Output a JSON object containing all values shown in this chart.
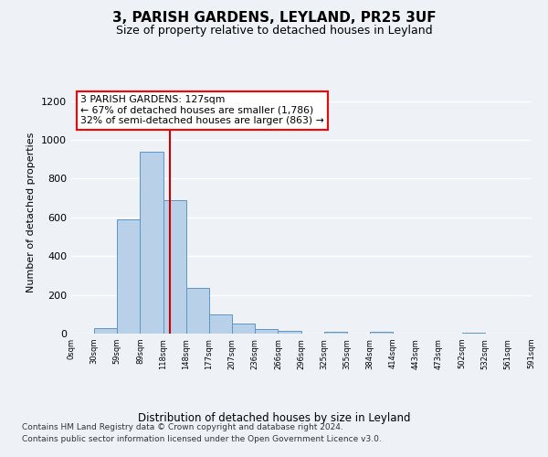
{
  "title": "3, PARISH GARDENS, LEYLAND, PR25 3UF",
  "subtitle": "Size of property relative to detached houses in Leyland",
  "xlabel": "Distribution of detached houses by size in Leyland",
  "ylabel": "Number of detached properties",
  "footer_line1": "Contains HM Land Registry data © Crown copyright and database right 2024.",
  "footer_line2": "Contains public sector information licensed under the Open Government Licence v3.0.",
  "annotation_line1": "3 PARISH GARDENS: 127sqm",
  "annotation_line2": "← 67% of detached houses are smaller (1,786)",
  "annotation_line3": "32% of semi-detached houses are larger (863) →",
  "bar_color": "#b8d0e8",
  "bar_edge_color": "#5a96c8",
  "redline_color": "#cc0000",
  "redline_x": 127,
  "bin_left_edges": [
    0,
    29.5,
    59,
    88.5,
    118,
    147.5,
    177,
    206.5,
    236,
    265.5,
    295,
    324.5,
    354,
    383.5,
    413,
    442.5,
    472,
    501.5,
    531,
    560.5
  ],
  "bin_width": 29.5,
  "bin_counts": [
    0,
    30,
    590,
    940,
    690,
    235,
    100,
    50,
    25,
    15,
    0,
    10,
    0,
    10,
    0,
    0,
    0,
    5,
    0,
    0
  ],
  "tick_labels": [
    "0sqm",
    "30sqm",
    "59sqm",
    "89sqm",
    "118sqm",
    "148sqm",
    "177sqm",
    "207sqm",
    "236sqm",
    "266sqm",
    "296sqm",
    "325sqm",
    "355sqm",
    "384sqm",
    "414sqm",
    "443sqm",
    "473sqm",
    "502sqm",
    "532sqm",
    "561sqm",
    "591sqm"
  ],
  "xlim_max": 591,
  "ylim": [
    0,
    1250
  ],
  "yticks": [
    0,
    200,
    400,
    600,
    800,
    1000,
    1200
  ],
  "background_color": "#eef2f7",
  "grid_color": "#ffffff",
  "spine_color": "#cccccc"
}
